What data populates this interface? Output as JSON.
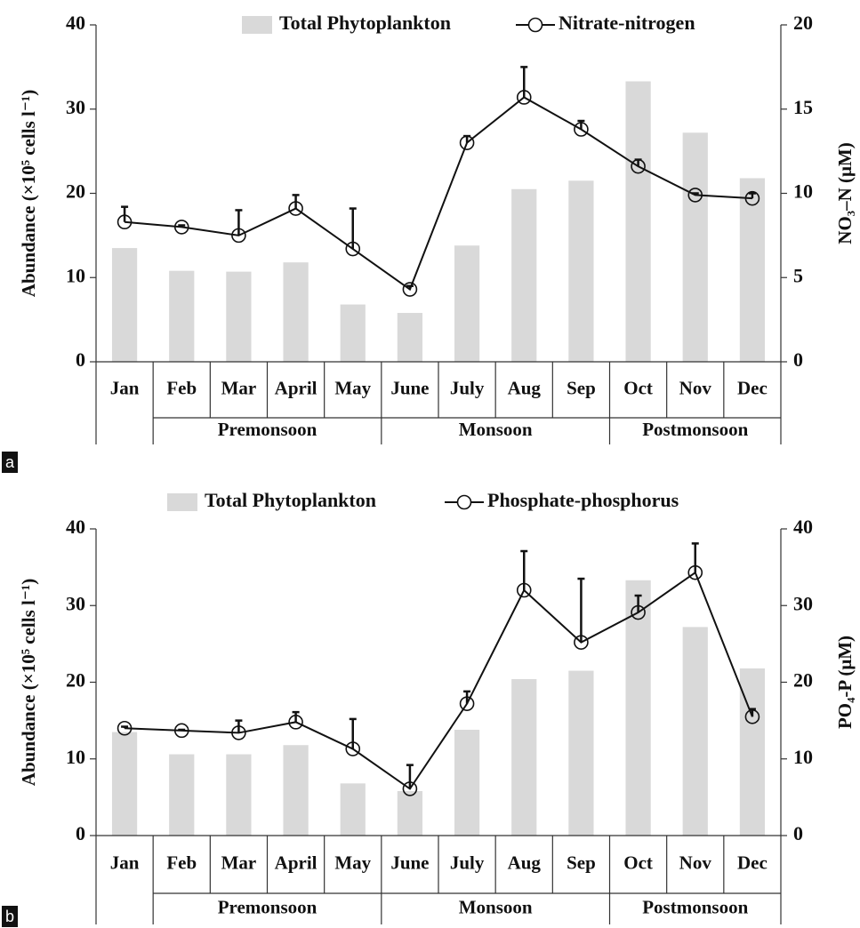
{
  "chart_data": [
    {
      "type": "combo",
      "panel_label": "a",
      "categories": [
        "Jan",
        "Feb",
        "Mar",
        "April",
        "May",
        "June",
        "July",
        "Aug",
        "Sep",
        "Oct",
        "Nov",
        "Dec"
      ],
      "groups": [
        {
          "label": "Premonsoon",
          "categories": [
            "Feb",
            "Mar",
            "April",
            "May"
          ]
        },
        {
          "label": "Monsoon",
          "categories": [
            "June",
            "July",
            "Aug",
            "Sep"
          ]
        },
        {
          "label": "Postmonsoon",
          "categories": [
            "Oct",
            "Nov",
            "Dec"
          ]
        }
      ],
      "ylabel": "Abundance (×10⁵ cells l⁻¹)",
      "y2label": "NO₃–N (μM)",
      "ylim": [
        0,
        40
      ],
      "yticks": [
        0,
        10,
        20,
        30,
        40
      ],
      "y2lim": [
        0,
        20
      ],
      "y2ticks": [
        0,
        5,
        10,
        15,
        20
      ],
      "series": [
        {
          "name": "Total Phytoplankton",
          "color": "#d9d9d9",
          "values": [
            13.5,
            10.8,
            10.7,
            11.8,
            6.8,
            5.8,
            13.8,
            20.5,
            21.5,
            33.3,
            27.2,
            21.8
          ]
        },
        {
          "name": "Nitrate-nitrogen",
          "color": "#111111",
          "axis": "y2",
          "values": [
            8.3,
            8.0,
            7.5,
            9.1,
            6.7,
            4.3,
            13.0,
            15.7,
            13.8,
            11.6,
            9.9,
            9.7
          ],
          "errors": [
            0.9,
            0.1,
            1.5,
            0.8,
            2.4,
            0.2,
            0.4,
            1.8,
            0.5,
            0.4,
            0.1,
            0.3
          ]
        }
      ],
      "legend": "top"
    },
    {
      "type": "combo",
      "panel_label": "b",
      "categories": [
        "Jan",
        "Feb",
        "Mar",
        "April",
        "May",
        "June",
        "July",
        "Aug",
        "Sep",
        "Oct",
        "Nov",
        "Dec"
      ],
      "groups": [
        {
          "label": "Premonsoon",
          "categories": [
            "Feb",
            "Mar",
            "April",
            "May"
          ]
        },
        {
          "label": "Monsoon",
          "categories": [
            "June",
            "July",
            "Aug",
            "Sep"
          ]
        },
        {
          "label": "Postmonsoon",
          "categories": [
            "Oct",
            "Nov",
            "Dec"
          ]
        }
      ],
      "ylabel": "Abundance (×10⁵ cells l⁻¹)",
      "y2label": "PO₄-P (μM)",
      "ylim": [
        0,
        40
      ],
      "yticks": [
        0,
        10,
        20,
        30,
        40
      ],
      "y2lim": [
        0,
        40
      ],
      "y2ticks": [
        0,
        10,
        20,
        30,
        40
      ],
      "series": [
        {
          "name": "Total Phytoplankton",
          "color": "#d9d9d9",
          "values": [
            13.5,
            10.6,
            10.6,
            11.8,
            6.8,
            5.8,
            13.8,
            20.4,
            21.5,
            33.3,
            27.2,
            21.8
          ]
        },
        {
          "name": "Phosphate-phosphorus",
          "color": "#111111",
          "axis": "y2",
          "values": [
            14.0,
            13.7,
            13.4,
            14.8,
            11.3,
            6.1,
            17.2,
            32.0,
            25.2,
            29.1,
            34.3,
            15.5
          ],
          "errors": [
            0.2,
            0.1,
            1.6,
            1.3,
            3.9,
            3.1,
            1.6,
            5.1,
            8.3,
            2.2,
            3.8,
            1.0
          ]
        }
      ],
      "legend": "top"
    }
  ]
}
